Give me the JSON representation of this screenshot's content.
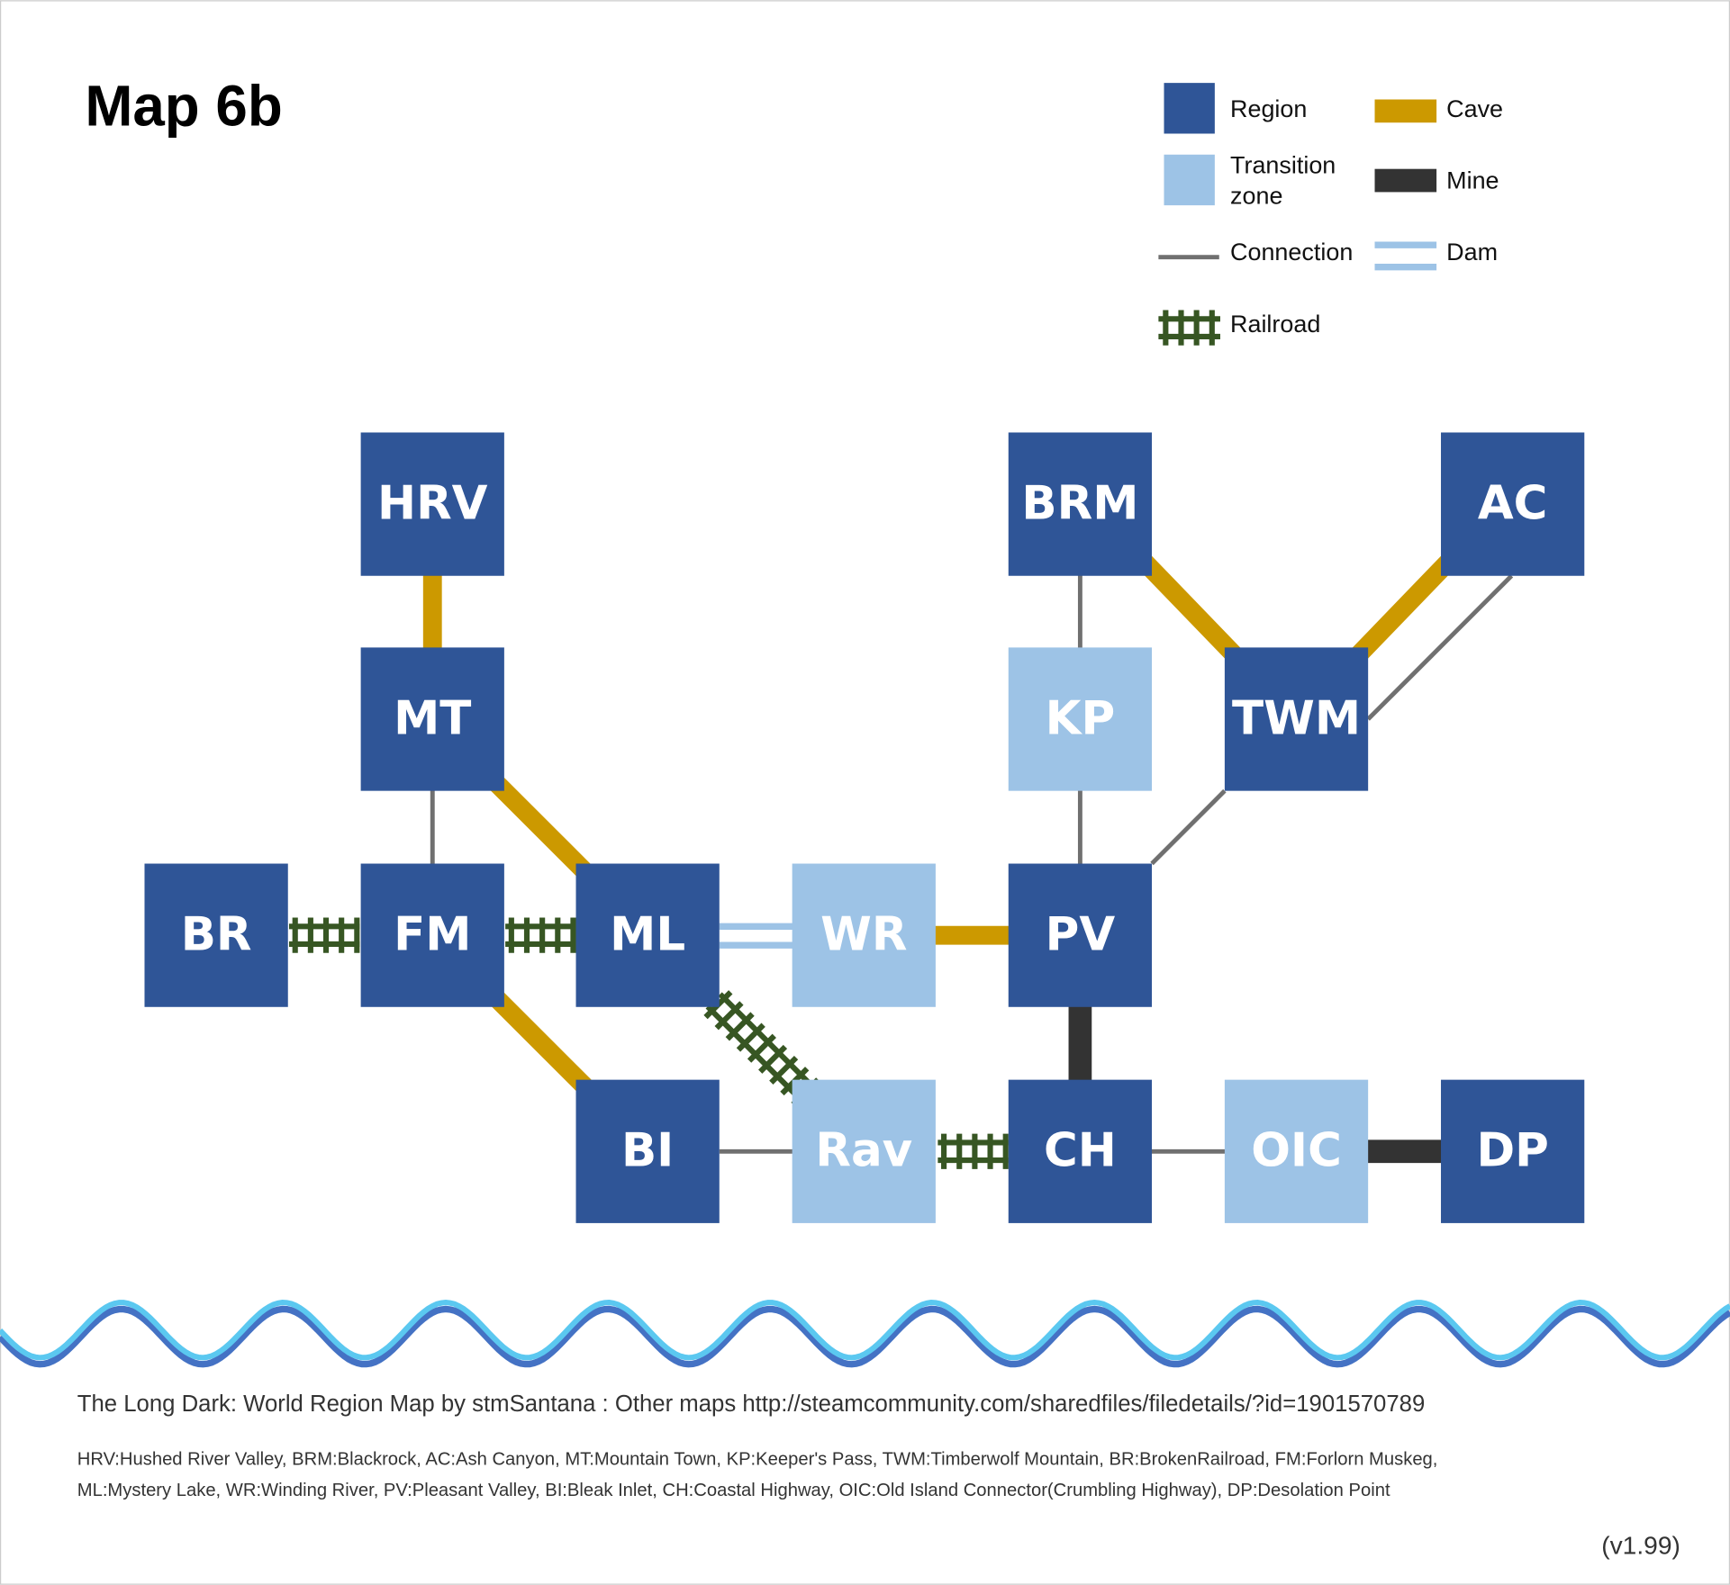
{
  "header": {
    "title": "Map 6b"
  },
  "legend": {
    "region": "Region",
    "transition_zone": [
      "Transition",
      "zone"
    ],
    "connection": "Connection",
    "railroad": "Railroad",
    "cave": "Cave",
    "mine": "Mine",
    "dam": "Dam"
  },
  "nodes": [
    {
      "label": "HRV"
    },
    {
      "label": "BRM"
    },
    {
      "label": "AC"
    },
    {
      "label": "MT"
    },
    {
      "label": "KP"
    },
    {
      "label": "TWM"
    },
    {
      "label": "BR"
    },
    {
      "label": "FM"
    },
    {
      "label": "ML"
    },
    {
      "label": "WR"
    },
    {
      "label": "PV"
    },
    {
      "label": "BI"
    },
    {
      "label": "Rav"
    },
    {
      "label": "CH"
    },
    {
      "label": "OIC"
    },
    {
      "label": "DP"
    }
  ],
  "footer": {
    "credit": "The Long Dark: World Region Map by stmSantana : Other maps http://steamcommunity.com/sharedfiles/filedetails/?id=1901570789",
    "abbreviations": [
      "HRV:Hushed River Valley, BRM:Blackrock, AC:Ash Canyon, MT:Mountain Town, KP:Keeper's Pass, TWM:Timberwolf Mountain, BR:BrokenRailroad, FM:Forlorn Muskeg,",
      "ML:Mystery Lake, WR:Winding River, PV:Pleasant Valley, BI:Bleak Inlet, CH:Coastal Highway, OIC:Old Island Connector(Crumbling Highway), DP:Desolation Point"
    ],
    "version": "(v1.99)"
  }
}
